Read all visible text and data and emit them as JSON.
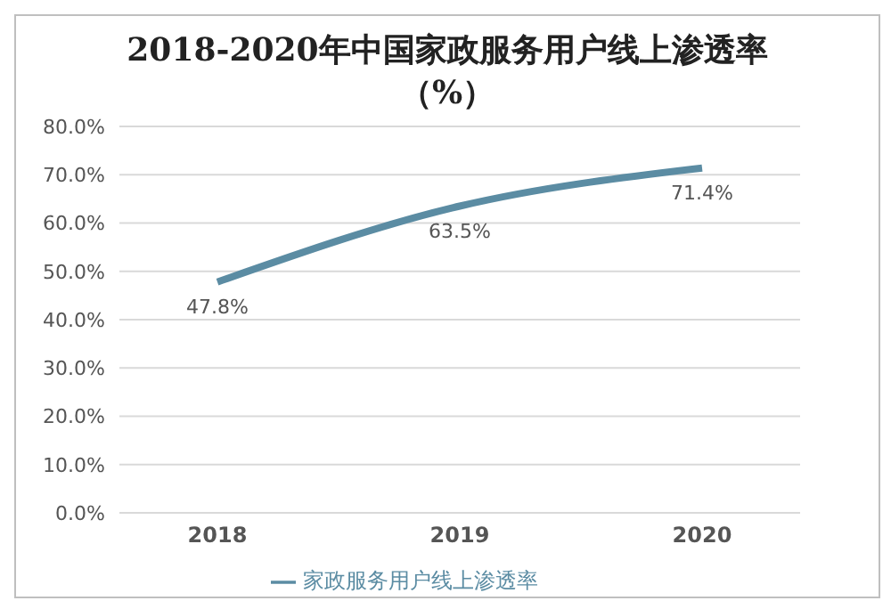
{
  "chart_data": {
    "type": "line",
    "title": "2018-2020年中国家政服务用户线上渗透率（%）",
    "categories": [
      "2018",
      "2019",
      "2020"
    ],
    "series": [
      {
        "name": "家政服务用户线上渗透率",
        "color": "#5b8ca3",
        "values": [
          47.8,
          63.5,
          71.4
        ],
        "value_labels": [
          "47.8%",
          "63.5%",
          "71.4%"
        ]
      }
    ],
    "ylim": [
      0,
      80
    ],
    "yticks": [
      {
        "value": 0,
        "label": "0.0%"
      },
      {
        "value": 10,
        "label": "10.0%"
      },
      {
        "value": 20,
        "label": "20.0%"
      },
      {
        "value": 30,
        "label": "30.0%"
      },
      {
        "value": 40,
        "label": "40.0%"
      },
      {
        "value": 50,
        "label": "50.0%"
      },
      {
        "value": 60,
        "label": "60.0%"
      },
      {
        "value": 70,
        "label": "70.0%"
      },
      {
        "value": 80,
        "label": "80.0%"
      }
    ],
    "grid": "y",
    "legend": "bottom",
    "marker": "none",
    "line_style": "solid"
  }
}
